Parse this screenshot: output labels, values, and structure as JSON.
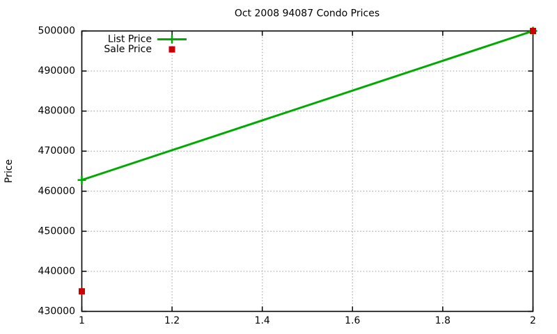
{
  "chart_data": {
    "type": "line",
    "title": "Oct 2008 94087 Condo Prices",
    "xlabel": "",
    "ylabel": "Price",
    "xlim": [
      1,
      2
    ],
    "ylim": [
      430000,
      500000
    ],
    "grid": true,
    "legend_position": "top-left-inside",
    "xticks": [
      {
        "v": 1,
        "label": "1"
      },
      {
        "v": 1.2,
        "label": "1.2"
      },
      {
        "v": 1.4,
        "label": "1.4"
      },
      {
        "v": 1.6,
        "label": "1.6"
      },
      {
        "v": 1.8,
        "label": "1.8"
      },
      {
        "v": 2,
        "label": "2"
      }
    ],
    "yticks": [
      {
        "v": 430000,
        "label": "430000"
      },
      {
        "v": 440000,
        "label": "440000"
      },
      {
        "v": 450000,
        "label": "450000"
      },
      {
        "v": 460000,
        "label": "460000"
      },
      {
        "v": 470000,
        "label": "470000"
      },
      {
        "v": 480000,
        "label": "480000"
      },
      {
        "v": 490000,
        "label": "490000"
      },
      {
        "v": 500000,
        "label": "500000"
      }
    ],
    "series": [
      {
        "name": "List Price",
        "type": "line",
        "marker": "plus",
        "color": "#00aa00",
        "points": [
          [
            1,
            462800
          ],
          [
            2,
            500000
          ]
        ]
      },
      {
        "name": "Sale Price",
        "type": "scatter",
        "marker": "square",
        "color": "#cc0000",
        "points": [
          [
            1,
            435000
          ],
          [
            2,
            500000
          ]
        ]
      }
    ],
    "colors": {
      "grid": "#a8a8a8",
      "axis": "#000000",
      "text": "#000000"
    }
  }
}
